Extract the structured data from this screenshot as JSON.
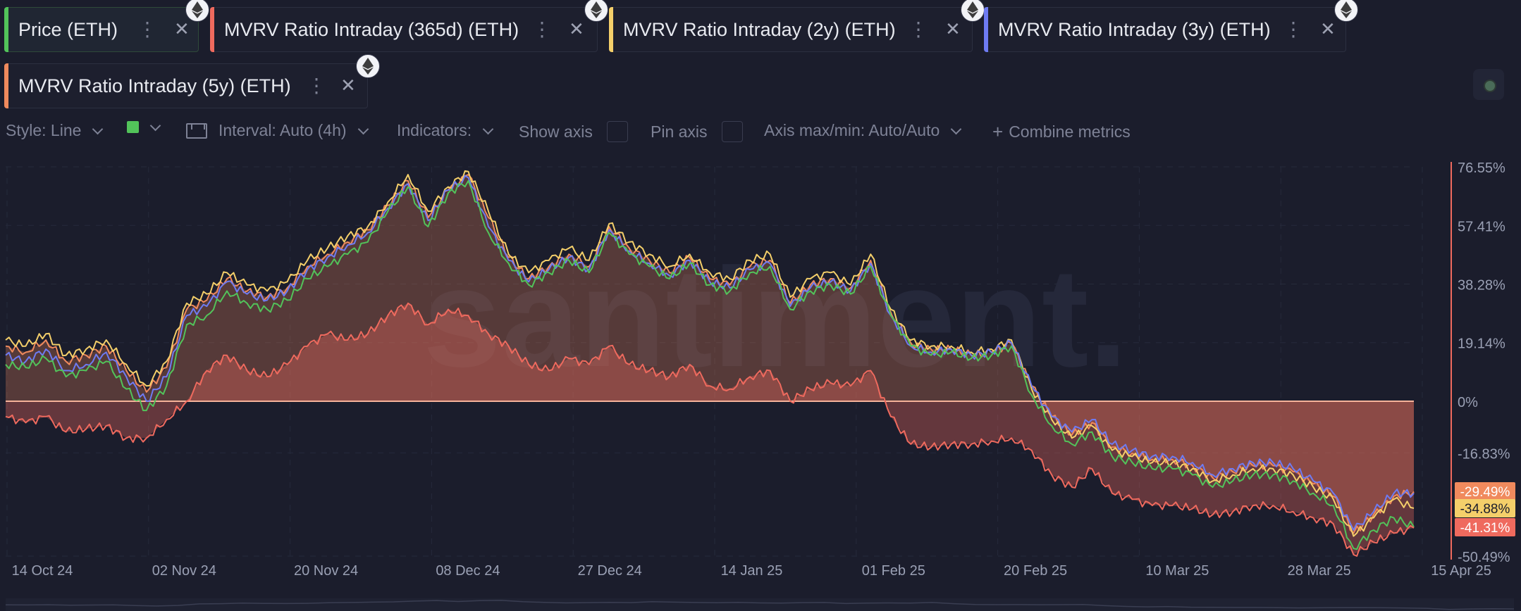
{
  "tabs": [
    {
      "label": "Price (ETH)",
      "color": "#52c35a",
      "active": true
    },
    {
      "label": "MVRV Ratio Intraday (365d) (ETH)",
      "color": "#ef6a5e",
      "active": false
    },
    {
      "label": "MVRV Ratio Intraday (2y) (ETH)",
      "color": "#f4cf6a",
      "active": false
    },
    {
      "label": "MVRV Ratio Intraday (3y) (ETH)",
      "color": "#6e7bf2",
      "active": false
    },
    {
      "label": "MVRV Ratio Intraday (5y) (ETH)",
      "color": "#f08a5d",
      "active": false
    }
  ],
  "settings": {
    "style_label": "Style: Line",
    "interval_label": "Interval: Auto (4h)",
    "indicators_label": "Indicators:",
    "show_axis_label": "Show axis",
    "pin_axis_label": "Pin axis",
    "axis_minmax_label": "Axis max/min: Auto/Auto",
    "combine_label": "Combine metrics"
  },
  "watermark": "santiment.",
  "chart_data": {
    "type": "line",
    "x_labels": [
      "14 Oct 24",
      "02 Nov 24",
      "20 Nov 24",
      "08 Dec 24",
      "27 Dec 24",
      "14 Jan 25",
      "01 Feb 25",
      "20 Feb 25",
      "10 Mar 25",
      "28 Mar 25",
      "15 Apr 25"
    ],
    "y_ticks": [
      "76.55%",
      "57.41%",
      "38.28%",
      "19.14%",
      "0%",
      "-16.83%",
      "-29.49%",
      "-34.88%",
      "-41.31%",
      "-50.49%"
    ],
    "ylim": [
      -50.49,
      76.55
    ],
    "last_value_badges": [
      {
        "label": "-29.49%",
        "value": -29.49,
        "color": "#f08a5d"
      },
      {
        "label": "-34.88%",
        "value": -34.88,
        "color": "#f4cf6a"
      },
      {
        "label": "-41.31%",
        "value": -41.31,
        "color": "#ef6a5e"
      }
    ],
    "series": [
      {
        "name": "Price (ETH)",
        "color": "#52c35a",
        "values": [
          12,
          11,
          14,
          8,
          10,
          13,
          4,
          -3,
          5,
          25,
          28,
          36,
          32,
          30,
          33,
          40,
          44,
          48,
          52,
          62,
          70,
          57,
          68,
          72,
          55,
          45,
          38,
          42,
          46,
          42,
          55,
          48,
          44,
          40,
          45,
          38,
          36,
          42,
          44,
          30,
          36,
          38,
          35,
          44,
          28,
          18,
          15,
          16,
          14,
          15,
          18,
          2,
          -8,
          -14,
          -10,
          -18,
          -20,
          -22,
          -22,
          -24,
          -28,
          -26,
          -24,
          -24,
          -26,
          -30,
          -34,
          -48,
          -42,
          -38,
          -41
        ]
      },
      {
        "name": "MVRV Ratio Intraday (365d) (ETH)",
        "color": "#ef6a5e",
        "values": [
          -5,
          -7,
          -5,
          -10,
          -9,
          -8,
          -12,
          -12,
          -6,
          0,
          10,
          15,
          10,
          8,
          12,
          18,
          22,
          20,
          22,
          28,
          32,
          25,
          30,
          28,
          22,
          18,
          12,
          10,
          14,
          12,
          18,
          12,
          10,
          8,
          12,
          5,
          4,
          8,
          10,
          0,
          4,
          6,
          5,
          10,
          -5,
          -14,
          -15,
          -14,
          -14,
          -13,
          -12,
          -16,
          -24,
          -28,
          -22,
          -30,
          -32,
          -34,
          -34,
          -35,
          -37,
          -36,
          -34,
          -34,
          -36,
          -38,
          -40,
          -50,
          -46,
          -43,
          -41.31
        ]
      },
      {
        "name": "MVRV Ratio Intraday (2y) (ETH)",
        "color": "#f4cf6a",
        "values": [
          20,
          18,
          22,
          15,
          17,
          20,
          12,
          5,
          13,
          32,
          35,
          42,
          38,
          36,
          39,
          46,
          50,
          54,
          57,
          65,
          74,
          62,
          70,
          75,
          62,
          48,
          42,
          46,
          50,
          46,
          58,
          52,
          48,
          44,
          48,
          42,
          40,
          46,
          48,
          34,
          40,
          42,
          38,
          48,
          30,
          20,
          18,
          18,
          16,
          17,
          20,
          4,
          -6,
          -12,
          -8,
          -16,
          -18,
          -20,
          -20,
          -22,
          -26,
          -24,
          -22,
          -22,
          -24,
          -28,
          -32,
          -44,
          -38,
          -32,
          -34.88
        ]
      },
      {
        "name": "MVRV Ratio Intraday (3y) (ETH)",
        "color": "#6e7bf2",
        "values": [
          15,
          13,
          17,
          10,
          12,
          16,
          8,
          0,
          8,
          28,
          31,
          39,
          35,
          33,
          36,
          43,
          47,
          51,
          55,
          63,
          71,
          59,
          69,
          73,
          57,
          46,
          39,
          43,
          47,
          43,
          56,
          49,
          45,
          41,
          46,
          39,
          37,
          43,
          45,
          31,
          37,
          39,
          36,
          45,
          28,
          18,
          16,
          17,
          15,
          16,
          19,
          5,
          -5,
          -10,
          -6,
          -14,
          -16,
          -18,
          -18,
          -20,
          -24,
          -22,
          -20,
          -20,
          -22,
          -26,
          -30,
          -42,
          -36,
          -30,
          -30
        ]
      },
      {
        "name": "MVRV Ratio Intraday (5y) (ETH)",
        "color": "#f08a5d",
        "values": [
          18,
          16,
          20,
          13,
          15,
          18,
          10,
          3,
          11,
          30,
          33,
          40,
          36,
          34,
          37,
          44,
          48,
          52,
          56,
          64,
          72,
          60,
          69,
          74,
          60,
          47,
          40,
          44,
          48,
          44,
          57,
          50,
          46,
          42,
          47,
          40,
          38,
          44,
          46,
          32,
          38,
          40,
          37,
          46,
          29,
          19,
          17,
          17,
          15,
          16,
          19,
          5,
          -5,
          -11,
          -7,
          -15,
          -17,
          -19,
          -19,
          -21,
          -25,
          -23,
          -21,
          -21,
          -23,
          -27,
          -31,
          -43,
          -37,
          -31,
          -29.49
        ]
      }
    ]
  }
}
